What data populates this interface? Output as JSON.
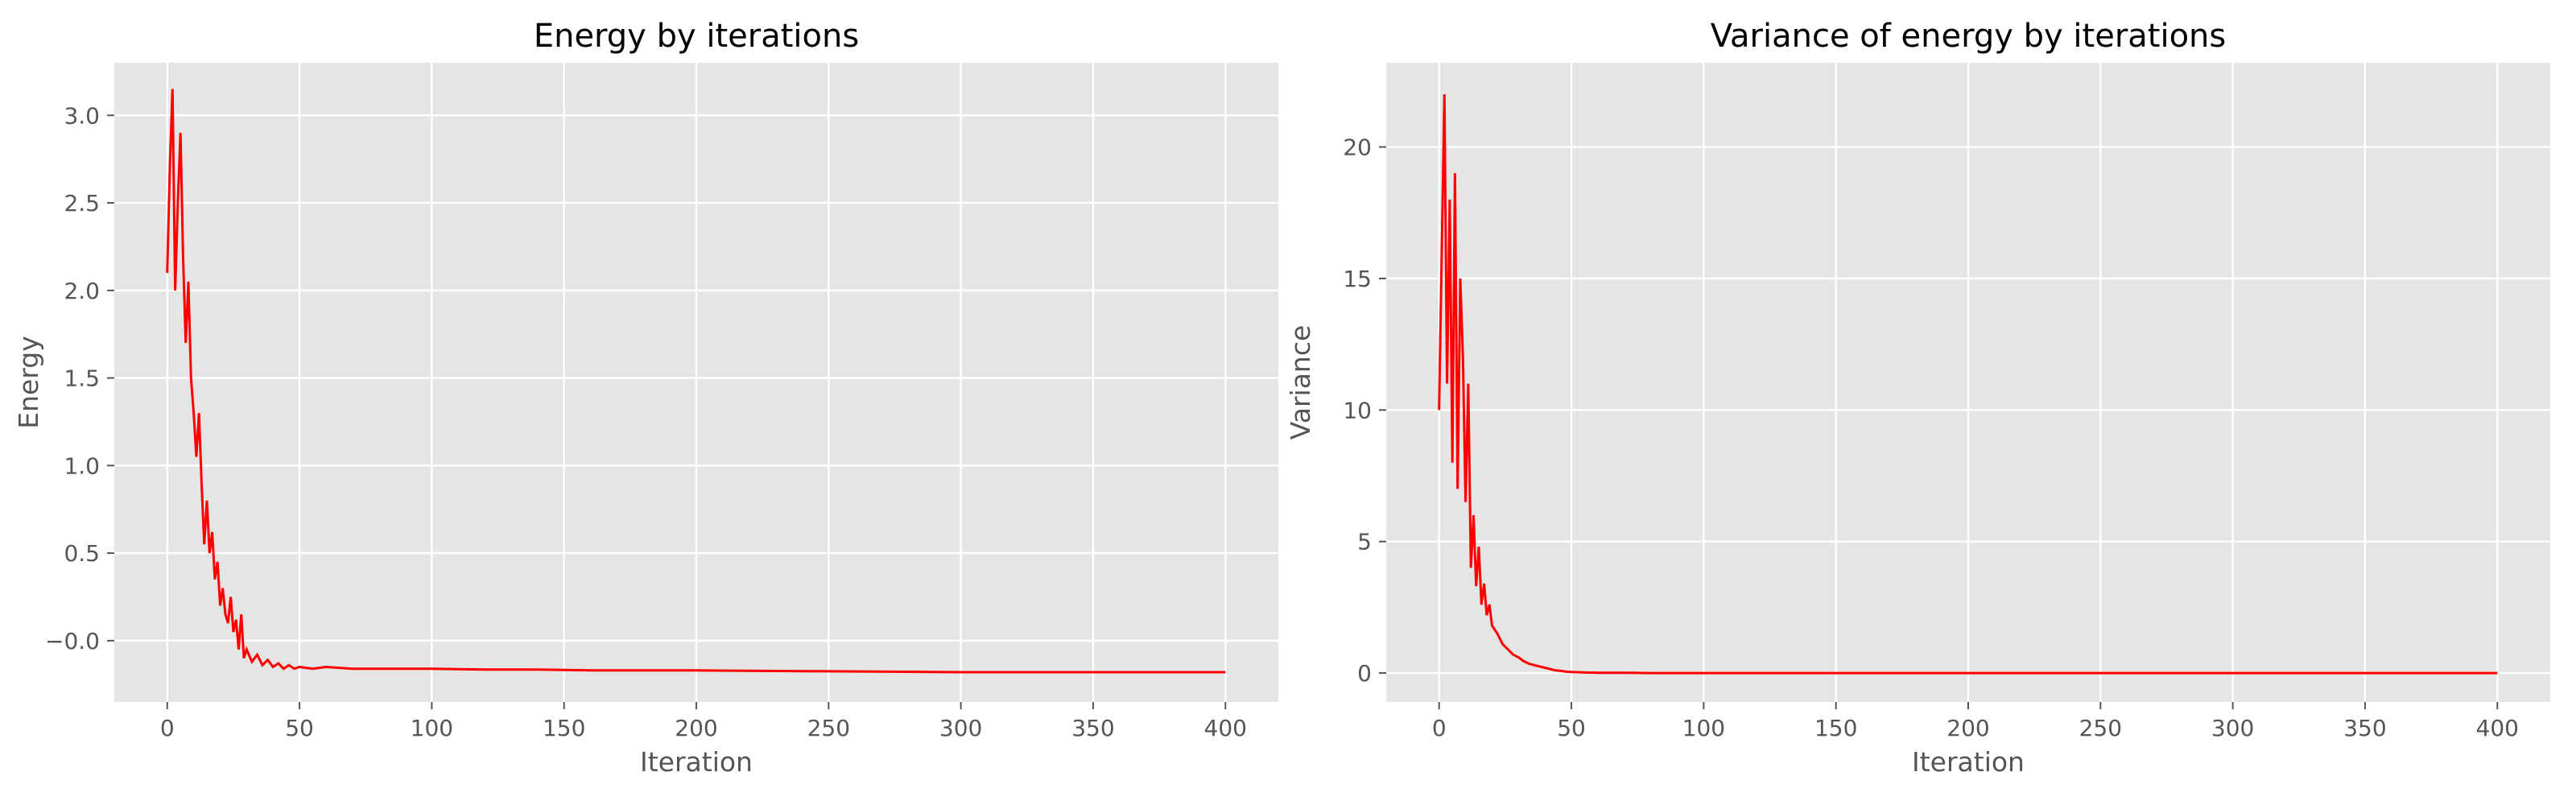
{
  "chart_data": [
    {
      "type": "line",
      "title": "Energy by iterations",
      "xlabel": "Iteration",
      "ylabel": "Energy",
      "xlim": [
        -20,
        420
      ],
      "ylim": [
        -0.35,
        3.3
      ],
      "xticks": [
        0,
        50,
        100,
        150,
        200,
        250,
        300,
        350,
        400
      ],
      "yticks": [
        -0.0,
        0.5,
        1.0,
        1.5,
        2.0,
        2.5,
        3.0
      ],
      "ytick_labels": [
        "−0.0",
        "0.5",
        "1.0",
        "1.5",
        "2.0",
        "2.5",
        "3.0"
      ],
      "grid": true,
      "color": "#ff0000",
      "series": [
        {
          "x": [
            0,
            1,
            2,
            3,
            4,
            5,
            6,
            7,
            8,
            9,
            10,
            11,
            12,
            13,
            14,
            15,
            16,
            17,
            18,
            19,
            20,
            21,
            22,
            23,
            24,
            25,
            26,
            27,
            28,
            29,
            30,
            32,
            34,
            36,
            38,
            40,
            42,
            44,
            46,
            48,
            50,
            55,
            60,
            70,
            80,
            100,
            120,
            140,
            160,
            180,
            200,
            250,
            300,
            350,
            400
          ],
          "values": [
            2.1,
            2.7,
            3.15,
            2.0,
            2.5,
            2.9,
            2.2,
            1.7,
            2.05,
            1.5,
            1.3,
            1.05,
            1.3,
            0.9,
            0.55,
            0.8,
            0.5,
            0.62,
            0.35,
            0.45,
            0.2,
            0.3,
            0.15,
            0.1,
            0.25,
            0.05,
            0.12,
            -0.05,
            0.15,
            -0.1,
            -0.05,
            -0.12,
            -0.08,
            -0.14,
            -0.11,
            -0.15,
            -0.13,
            -0.16,
            -0.14,
            -0.16,
            -0.15,
            -0.16,
            -0.15,
            -0.16,
            -0.16,
            -0.16,
            -0.165,
            -0.165,
            -0.17,
            -0.17,
            -0.17,
            -0.175,
            -0.18,
            -0.18,
            -0.18
          ]
        }
      ]
    },
    {
      "type": "line",
      "title": "Variance of energy by iterations",
      "xlabel": "Iteration",
      "ylabel": "Variance",
      "xlim": [
        -20,
        420
      ],
      "ylim": [
        -1.1,
        23.2
      ],
      "xticks": [
        0,
        50,
        100,
        150,
        200,
        250,
        300,
        350,
        400
      ],
      "yticks": [
        0,
        5,
        10,
        15,
        20
      ],
      "ytick_labels": [
        "0",
        "5",
        "10",
        "15",
        "20"
      ],
      "grid": true,
      "color": "#ff0000",
      "series": [
        {
          "x": [
            0,
            1,
            2,
            3,
            4,
            5,
            6,
            7,
            8,
            9,
            10,
            11,
            12,
            13,
            14,
            15,
            16,
            17,
            18,
            19,
            20,
            22,
            24,
            26,
            28,
            30,
            32,
            34,
            36,
            38,
            40,
            42,
            44,
            46,
            48,
            50,
            55,
            60,
            70,
            80,
            100,
            150,
            200,
            250,
            300,
            350,
            400
          ],
          "values": [
            10,
            16,
            22,
            11,
            18,
            8,
            19,
            7,
            15,
            12,
            6.5,
            11,
            4,
            6,
            3.3,
            4.8,
            2.6,
            3.4,
            2.2,
            2.6,
            1.8,
            1.5,
            1.1,
            0.9,
            0.7,
            0.6,
            0.45,
            0.35,
            0.3,
            0.25,
            0.2,
            0.15,
            0.1,
            0.08,
            0.05,
            0.04,
            0.02,
            0.01,
            0.01,
            0.0,
            0.0,
            0.0,
            0.0,
            0.0,
            0.0,
            0.0,
            0.0
          ]
        }
      ]
    }
  ]
}
